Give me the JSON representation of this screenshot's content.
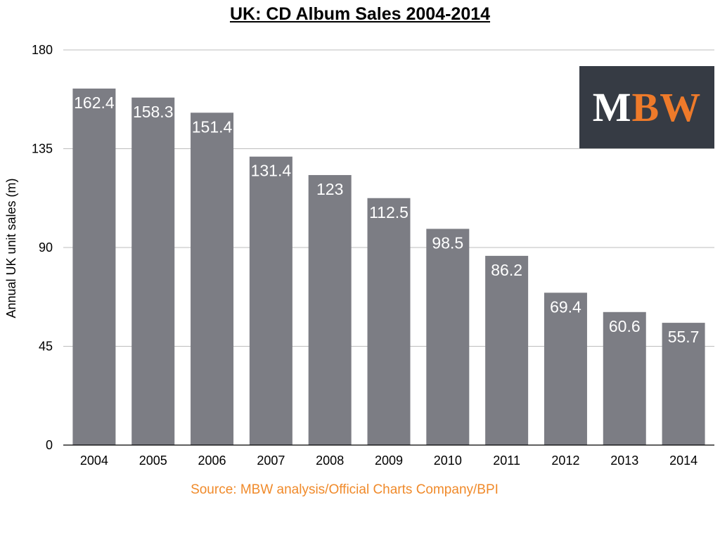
{
  "colors": {
    "bar": "#7c7d84",
    "bar_label": "#ffffff",
    "grid": "#bdbdbd",
    "axis": "#000000",
    "source": "#f08a2a",
    "logo_bg": "#363b44",
    "logo_white": "#ffffff",
    "logo_orange": "#ee7a2a"
  },
  "logo": {
    "part1": "M",
    "part2": "BW"
  },
  "source_text": "Source: MBW analysis/Official Charts Company/BPI",
  "chart_data": {
    "type": "bar",
    "title": "UK: CD Album Sales 2004-2014",
    "xlabel": "",
    "ylabel": "Annual UK unit sales (m)",
    "ylim": [
      0,
      180
    ],
    "yticks": [
      0,
      45,
      90,
      135,
      180
    ],
    "grid": true,
    "categories": [
      "2004",
      "2005",
      "2006",
      "2007",
      "2008",
      "2009",
      "2010",
      "2011",
      "2012",
      "2013",
      "2014"
    ],
    "values": [
      162.4,
      158.3,
      151.4,
      131.4,
      123,
      112.5,
      98.5,
      86.2,
      69.4,
      60.6,
      55.7
    ],
    "data_labels": [
      "162.4",
      "158.3",
      "151.4",
      "131.4",
      "123",
      "112.5",
      "98.5",
      "86.2",
      "69.4",
      "60.6",
      "55.7"
    ]
  }
}
